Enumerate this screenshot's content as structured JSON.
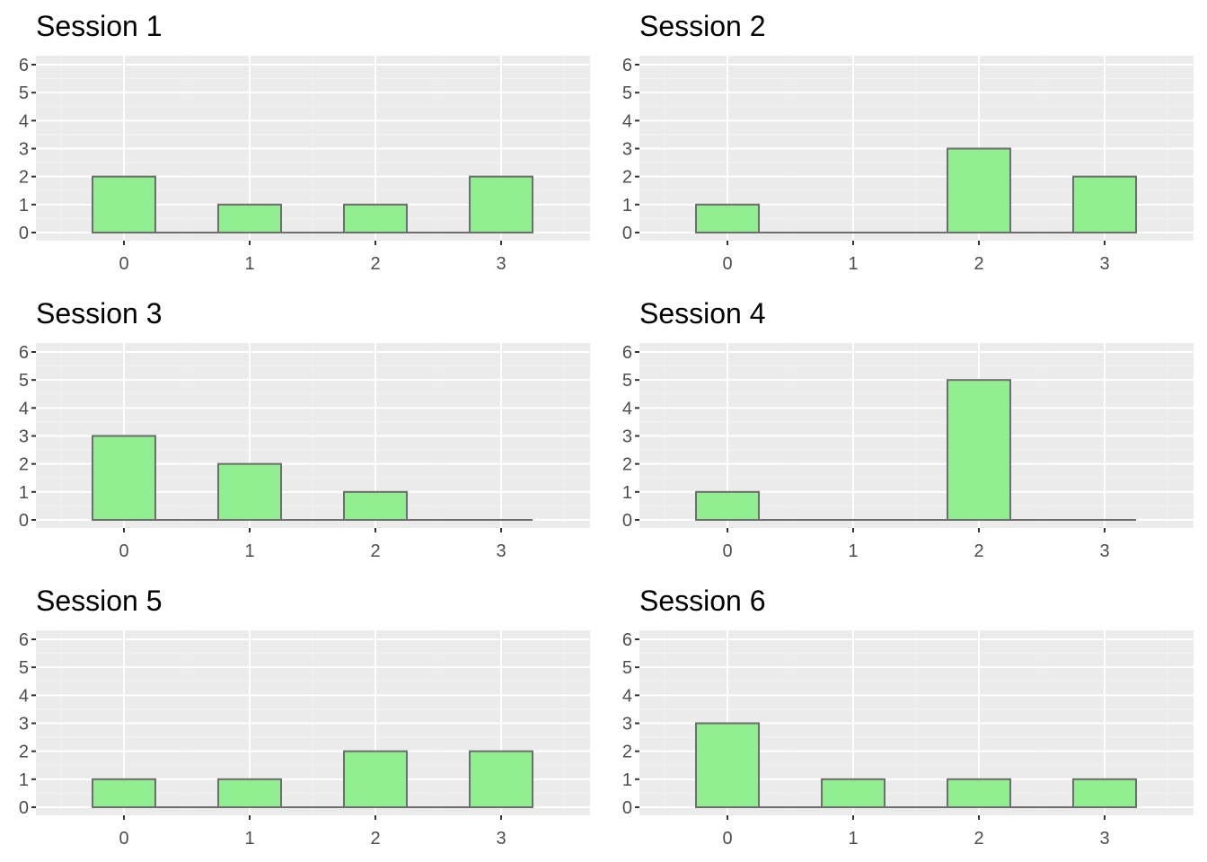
{
  "figure": {
    "panel_background": "#ebebeb",
    "grid_major_color": "#ffffff",
    "grid_minor_color": "#f2f2f2",
    "bar_fill": "#90ee90",
    "bar_stroke": "#6e6e6e",
    "tick_label_color": "#4d4d4d"
  },
  "chart_data": [
    {
      "type": "bar",
      "title": "Session 1",
      "categories": [
        "0",
        "1",
        "2",
        "3"
      ],
      "values": [
        2,
        1,
        1,
        2
      ],
      "y_ticks": [
        "0",
        "1",
        "2",
        "3",
        "4",
        "5",
        "6"
      ],
      "xlabel": "",
      "ylabel": "",
      "ylim": [
        0,
        6
      ],
      "grid": true,
      "legend": "none"
    },
    {
      "type": "bar",
      "title": "Session 2",
      "categories": [
        "0",
        "1",
        "2",
        "3"
      ],
      "values": [
        1,
        0,
        3,
        2
      ],
      "y_ticks": [
        "0",
        "1",
        "2",
        "3",
        "4",
        "5",
        "6"
      ],
      "xlabel": "",
      "ylabel": "",
      "ylim": [
        0,
        6
      ],
      "grid": true,
      "legend": "none"
    },
    {
      "type": "bar",
      "title": "Session 3",
      "categories": [
        "0",
        "1",
        "2",
        "3"
      ],
      "values": [
        3,
        2,
        1,
        0
      ],
      "y_ticks": [
        "0",
        "1",
        "2",
        "3",
        "4",
        "5",
        "6"
      ],
      "xlabel": "",
      "ylabel": "",
      "ylim": [
        0,
        6
      ],
      "grid": true,
      "legend": "none"
    },
    {
      "type": "bar",
      "title": "Session 4",
      "categories": [
        "0",
        "1",
        "2",
        "3"
      ],
      "values": [
        1,
        0,
        5,
        0
      ],
      "y_ticks": [
        "0",
        "1",
        "2",
        "3",
        "4",
        "5",
        "6"
      ],
      "xlabel": "",
      "ylabel": "",
      "ylim": [
        0,
        6
      ],
      "grid": true,
      "legend": "none"
    },
    {
      "type": "bar",
      "title": "Session 5",
      "categories": [
        "0",
        "1",
        "2",
        "3"
      ],
      "values": [
        1,
        1,
        2,
        2
      ],
      "y_ticks": [
        "0",
        "1",
        "2",
        "3",
        "4",
        "5",
        "6"
      ],
      "xlabel": "",
      "ylabel": "",
      "ylim": [
        0,
        6
      ],
      "grid": true,
      "legend": "none"
    },
    {
      "type": "bar",
      "title": "Session 6",
      "categories": [
        "0",
        "1",
        "2",
        "3"
      ],
      "values": [
        3,
        1,
        1,
        1
      ],
      "y_ticks": [
        "0",
        "1",
        "2",
        "3",
        "4",
        "5",
        "6"
      ],
      "xlabel": "",
      "ylabel": "",
      "ylim": [
        0,
        6
      ],
      "grid": true,
      "legend": "none"
    }
  ]
}
